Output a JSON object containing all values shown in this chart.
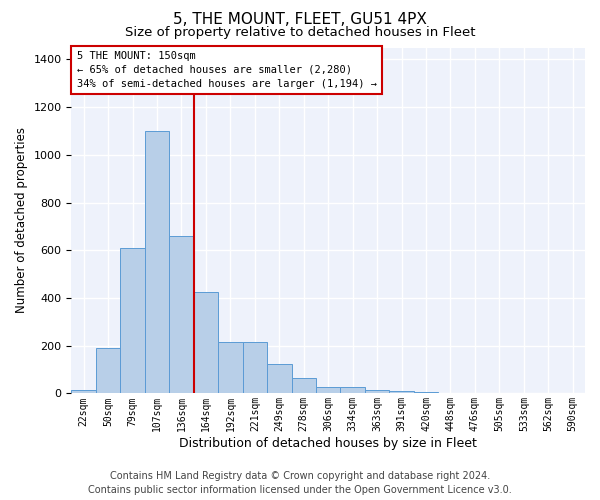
{
  "title": "5, THE MOUNT, FLEET, GU51 4PX",
  "subtitle": "Size of property relative to detached houses in Fleet",
  "xlabel": "Distribution of detached houses by size in Fleet",
  "ylabel": "Number of detached properties",
  "categories": [
    "22sqm",
    "50sqm",
    "79sqm",
    "107sqm",
    "136sqm",
    "164sqm",
    "192sqm",
    "221sqm",
    "249sqm",
    "278sqm",
    "306sqm",
    "334sqm",
    "363sqm",
    "391sqm",
    "420sqm",
    "448sqm",
    "476sqm",
    "505sqm",
    "533sqm",
    "562sqm",
    "590sqm"
  ],
  "values": [
    15,
    190,
    610,
    1100,
    660,
    425,
    215,
    215,
    125,
    65,
    25,
    25,
    15,
    10,
    5,
    3,
    1,
    1,
    1,
    0,
    0
  ],
  "bar_color": "#b8cfe8",
  "bar_edge_color": "#5b9bd5",
  "annotation_line1": "5 THE MOUNT: 150sqm",
  "annotation_line2": "← 65% of detached houses are smaller (2,280)",
  "annotation_line3": "34% of semi-detached houses are larger (1,194) →",
  "red_line_color": "#cc0000",
  "annotation_border_color": "#cc0000",
  "footer_line1": "Contains HM Land Registry data © Crown copyright and database right 2024.",
  "footer_line2": "Contains public sector information licensed under the Open Government Licence v3.0.",
  "ylim": [
    0,
    1450
  ],
  "background_color": "#eef2fb",
  "grid_color": "#ffffff",
  "title_fontsize": 11,
  "subtitle_fontsize": 9.5,
  "ylabel_fontsize": 8.5,
  "xlabel_fontsize": 9,
  "tick_fontsize": 7,
  "footer_fontsize": 7,
  "annot_fontsize": 7.5,
  "red_bin_index": 4,
  "red_line_x": 4.5
}
